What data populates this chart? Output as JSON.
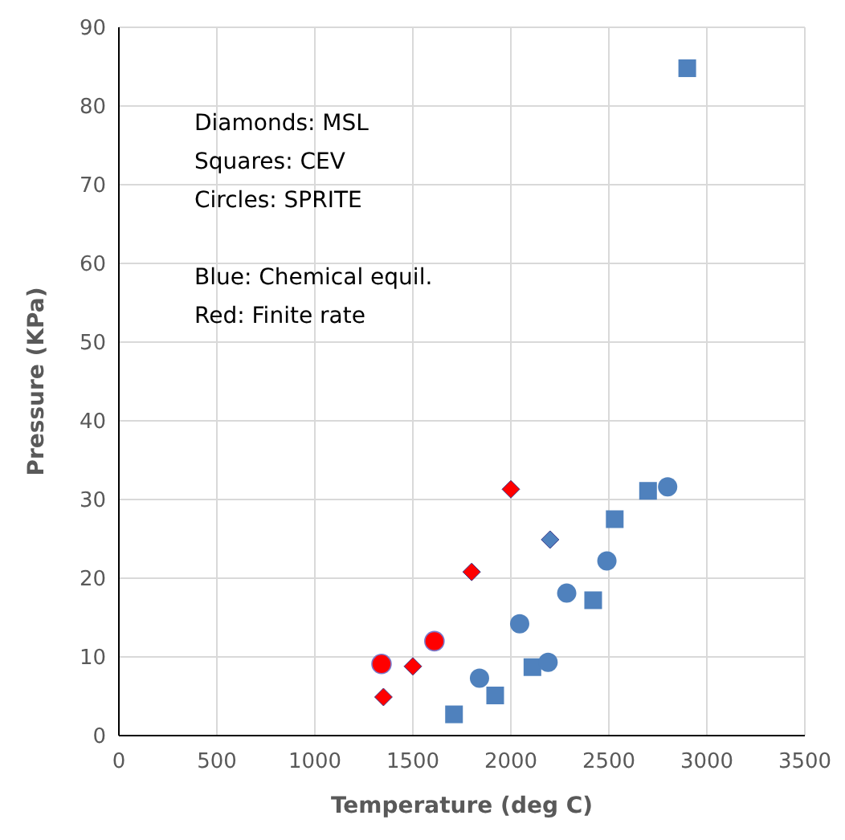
{
  "chart_data": {
    "type": "scatter",
    "xlabel": "Temperature (deg C)",
    "ylabel": "Pressure (KPa)",
    "xlim": [
      0,
      3500
    ],
    "xticks": [
      0,
      500,
      1000,
      1500,
      2000,
      2500,
      3000,
      3500
    ],
    "ylim": [
      0,
      90
    ],
    "yticks": [
      0,
      10,
      20,
      30,
      40,
      50,
      60,
      70,
      80,
      90
    ],
    "grid": true,
    "annotations": [
      "Diamonds: MSL",
      "Squares: CEV",
      "Circles: SPRITE",
      "Blue: Chemical equil.",
      "Red: Finite rate"
    ],
    "series": [
      {
        "color": "#ff0000",
        "marker": "diamond",
        "x": [
          2000,
          1800,
          1500,
          1350
        ],
        "values": [
          31.3,
          20.8,
          8.8,
          4.9
        ]
      },
      {
        "color": "#4f81bd",
        "marker": "diamond",
        "x": [
          2200
        ],
        "values": [
          24.9
        ]
      },
      {
        "color": "#4f81bd",
        "marker": "square",
        "x": [
          1710,
          1920,
          2110,
          2420,
          2530,
          2700,
          2900
        ],
        "values": [
          2.7,
          5.1,
          8.7,
          17.2,
          27.5,
          31.1,
          84.8
        ]
      },
      {
        "color": "#ff0000",
        "marker": "circle",
        "x": [
          1340,
          1610
        ],
        "values": [
          9.1,
          12.0
        ]
      },
      {
        "color": "#4f81bd",
        "marker": "circle",
        "x": [
          1840,
          2045,
          2190,
          2285,
          2490,
          2800
        ],
        "values": [
          7.3,
          14.2,
          9.3,
          18.1,
          22.2,
          31.6
        ]
      }
    ]
  }
}
